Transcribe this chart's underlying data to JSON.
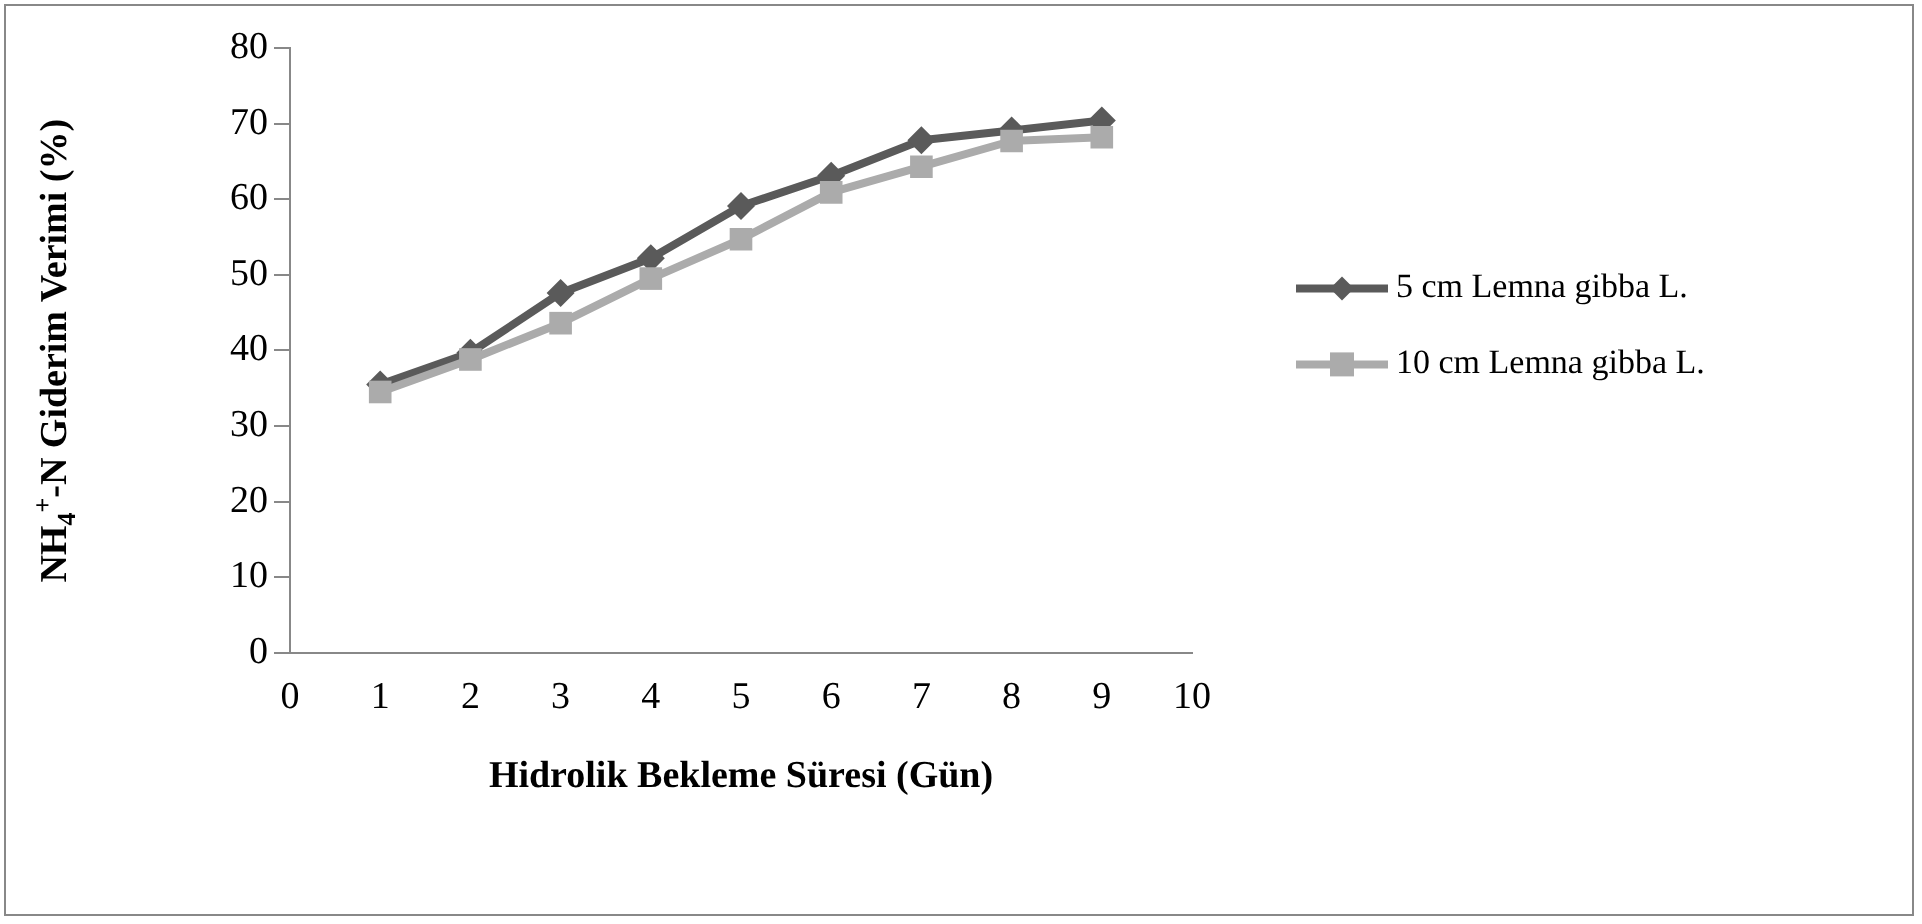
{
  "chart_data": {
    "type": "line",
    "xlabel": "Hidrolik Bekleme Süresi (Gün)",
    "ylabel": "NH$_{4}$$^{+}$-N Giderim Verimi (%)",
    "x": [
      1,
      2,
      3,
      4,
      5,
      6,
      7,
      8,
      9
    ],
    "series": [
      {
        "name": "5 cm Lemna gibba L.",
        "color": "#5a5a5a",
        "marker": "diamond",
        "values": [
          35.5,
          39.7,
          47.6,
          52.2,
          59.1,
          63.1,
          67.8,
          69.1,
          70.4
        ]
      },
      {
        "name": "10 cm Lemna gibba L.",
        "color": "#ababab",
        "marker": "square",
        "values": [
          34.5,
          38.8,
          43.6,
          49.5,
          54.7,
          60.9,
          64.3,
          67.7,
          68.2
        ]
      }
    ],
    "xlim": [
      0,
      10
    ],
    "xticks": [
      0,
      1,
      2,
      3,
      4,
      5,
      6,
      7,
      8,
      9,
      10
    ],
    "ylim": [
      0,
      80
    ],
    "yticks": [
      0,
      10,
      20,
      30,
      40,
      50,
      60,
      70,
      80
    ],
    "grid": false,
    "legend": "right"
  }
}
